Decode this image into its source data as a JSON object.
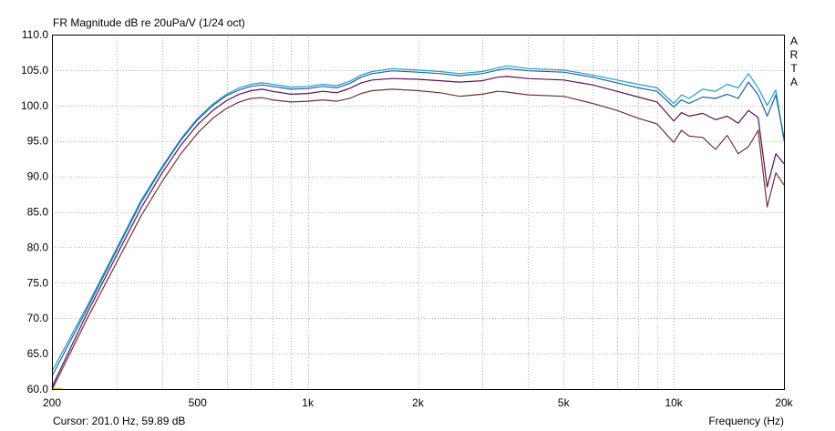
{
  "header": {
    "title": "FR Magnitude dB re 20uPa/V (1/24 oct)",
    "brand_letters": [
      "A",
      "R",
      "T",
      "A"
    ]
  },
  "footer": {
    "cursor": "Cursor: 201.0 Hz, 59.89 dB",
    "xlabel": "Frequency (Hz)"
  },
  "colors": {
    "background": "#ffffff",
    "grid": "#b4b4b4",
    "border": "#000000",
    "series": [
      "#1f9fcf",
      "#245f9f",
      "#5a0f55",
      "#6e3232"
    ],
    "cursor_marker": "#e0c000"
  },
  "chart_data": {
    "type": "line",
    "title": "FR Magnitude dB re 20uPa/V (1/24 oct)",
    "xlabel": "Frequency (Hz)",
    "ylabel": "",
    "xscale": "log",
    "xlim": [
      200,
      20000
    ],
    "ylim": [
      60,
      110
    ],
    "grid": true,
    "x_ticks": [
      200,
      500,
      1000,
      2000,
      5000,
      10000,
      20000
    ],
    "x_tick_labels": [
      "200",
      "500",
      "1k",
      "2k",
      "5k",
      "10k",
      "20k"
    ],
    "y_ticks": [
      60,
      65,
      70,
      75,
      80,
      85,
      90,
      95,
      100,
      105,
      110
    ],
    "y_tick_labels": [
      "60.0",
      "65.0",
      "70.0",
      "75.0",
      "80.0",
      "85.0",
      "90.0",
      "95.0",
      "100.0",
      "105.0",
      "110.0"
    ],
    "series": [
      {
        "color": "#1f9fcf",
        "points": [
          [
            200,
            62.5
          ],
          [
            250,
            71.8
          ],
          [
            300,
            79.8
          ],
          [
            350,
            86.6
          ],
          [
            400,
            91.4
          ],
          [
            450,
            95.3
          ],
          [
            500,
            98.2
          ],
          [
            550,
            100.2
          ],
          [
            600,
            101.6
          ],
          [
            650,
            102.5
          ],
          [
            700,
            103.0
          ],
          [
            750,
            103.2
          ],
          [
            800,
            103.0
          ],
          [
            900,
            102.6
          ],
          [
            1000,
            102.7
          ],
          [
            1100,
            103.0
          ],
          [
            1200,
            102.8
          ],
          [
            1300,
            103.4
          ],
          [
            1400,
            104.3
          ],
          [
            1500,
            104.8
          ],
          [
            1700,
            105.2
          ],
          [
            2000,
            105.0
          ],
          [
            2300,
            104.8
          ],
          [
            2600,
            104.5
          ],
          [
            3000,
            104.8
          ],
          [
            3300,
            105.3
          ],
          [
            3500,
            105.6
          ],
          [
            4000,
            105.2
          ],
          [
            5000,
            105.0
          ],
          [
            6000,
            104.3
          ],
          [
            7000,
            103.6
          ],
          [
            8000,
            103.0
          ],
          [
            9000,
            102.5
          ],
          [
            10000,
            100.3
          ],
          [
            10500,
            101.5
          ],
          [
            11000,
            101.0
          ],
          [
            12000,
            102.3
          ],
          [
            13000,
            102.0
          ],
          [
            14000,
            103.0
          ],
          [
            15000,
            102.5
          ],
          [
            16000,
            104.5
          ],
          [
            17000,
            102.5
          ],
          [
            18000,
            100.0
          ],
          [
            19000,
            102.2
          ],
          [
            20000,
            95.0
          ]
        ]
      },
      {
        "color": "#245f9f",
        "points": [
          [
            200,
            61.8
          ],
          [
            250,
            71.4
          ],
          [
            300,
            79.5
          ],
          [
            350,
            86.3
          ],
          [
            400,
            91.2
          ],
          [
            450,
            95.1
          ],
          [
            500,
            98.0
          ],
          [
            550,
            100.0
          ],
          [
            600,
            101.4
          ],
          [
            650,
            102.2
          ],
          [
            700,
            102.7
          ],
          [
            750,
            102.9
          ],
          [
            800,
            102.7
          ],
          [
            900,
            102.3
          ],
          [
            1000,
            102.4
          ],
          [
            1100,
            102.7
          ],
          [
            1200,
            102.5
          ],
          [
            1300,
            103.1
          ],
          [
            1400,
            104.0
          ],
          [
            1500,
            104.5
          ],
          [
            1700,
            104.9
          ],
          [
            2000,
            104.7
          ],
          [
            2300,
            104.5
          ],
          [
            2600,
            104.2
          ],
          [
            3000,
            104.5
          ],
          [
            3300,
            105.0
          ],
          [
            3500,
            105.2
          ],
          [
            4000,
            104.9
          ],
          [
            5000,
            104.7
          ],
          [
            6000,
            104.0
          ],
          [
            7000,
            103.2
          ],
          [
            8000,
            102.5
          ],
          [
            9000,
            102.0
          ],
          [
            10000,
            99.8
          ],
          [
            10500,
            100.8
          ],
          [
            11000,
            100.3
          ],
          [
            12000,
            101.2
          ],
          [
            13000,
            101.0
          ],
          [
            14000,
            101.6
          ],
          [
            15000,
            101.0
          ],
          [
            16000,
            103.3
          ],
          [
            17000,
            101.5
          ],
          [
            18000,
            98.5
          ],
          [
            19000,
            101.5
          ],
          [
            20000,
            95.5
          ]
        ]
      },
      {
        "color": "#5a0f55",
        "points": [
          [
            200,
            60.3
          ],
          [
            250,
            70.8
          ],
          [
            300,
            78.8
          ],
          [
            350,
            85.5
          ],
          [
            400,
            90.5
          ],
          [
            450,
            94.4
          ],
          [
            500,
            97.3
          ],
          [
            550,
            99.3
          ],
          [
            600,
            100.7
          ],
          [
            650,
            101.6
          ],
          [
            700,
            102.1
          ],
          [
            750,
            102.3
          ],
          [
            800,
            102.0
          ],
          [
            900,
            101.6
          ],
          [
            1000,
            101.7
          ],
          [
            1100,
            102.0
          ],
          [
            1200,
            101.8
          ],
          [
            1300,
            102.4
          ],
          [
            1400,
            103.2
          ],
          [
            1500,
            103.6
          ],
          [
            1700,
            103.8
          ],
          [
            2000,
            103.7
          ],
          [
            2300,
            103.5
          ],
          [
            2600,
            103.3
          ],
          [
            3000,
            103.5
          ],
          [
            3300,
            104.0
          ],
          [
            3500,
            104.1
          ],
          [
            4000,
            103.8
          ],
          [
            5000,
            103.6
          ],
          [
            6000,
            102.9
          ],
          [
            7000,
            102.0
          ],
          [
            8000,
            101.2
          ],
          [
            9000,
            100.5
          ],
          [
            10000,
            97.8
          ],
          [
            10500,
            99.0
          ],
          [
            11000,
            98.5
          ],
          [
            12000,
            98.9
          ],
          [
            13000,
            98.0
          ],
          [
            14000,
            98.5
          ],
          [
            15000,
            97.5
          ],
          [
            16000,
            99.3
          ],
          [
            17000,
            98.3
          ],
          [
            18000,
            88.5
          ],
          [
            19000,
            93.2
          ],
          [
            20000,
            91.8
          ]
        ]
      },
      {
        "color": "#6e3232",
        "points": [
          [
            200,
            59.9
          ],
          [
            250,
            70.0
          ],
          [
            300,
            77.8
          ],
          [
            350,
            84.4
          ],
          [
            400,
            89.3
          ],
          [
            450,
            93.2
          ],
          [
            500,
            96.1
          ],
          [
            550,
            98.2
          ],
          [
            600,
            99.6
          ],
          [
            650,
            100.5
          ],
          [
            700,
            101.0
          ],
          [
            750,
            101.1
          ],
          [
            800,
            100.8
          ],
          [
            900,
            100.5
          ],
          [
            1000,
            100.6
          ],
          [
            1100,
            100.8
          ],
          [
            1200,
            100.6
          ],
          [
            1300,
            101.0
          ],
          [
            1400,
            101.7
          ],
          [
            1500,
            102.1
          ],
          [
            1700,
            102.3
          ],
          [
            2000,
            102.1
          ],
          [
            2300,
            101.8
          ],
          [
            2600,
            101.3
          ],
          [
            3000,
            101.6
          ],
          [
            3300,
            102.0
          ],
          [
            3500,
            101.9
          ],
          [
            4000,
            101.5
          ],
          [
            5000,
            101.3
          ],
          [
            6000,
            100.3
          ],
          [
            7000,
            99.3
          ],
          [
            8000,
            98.2
          ],
          [
            9000,
            97.4
          ],
          [
            10000,
            94.8
          ],
          [
            10500,
            96.5
          ],
          [
            11000,
            95.7
          ],
          [
            12000,
            95.5
          ],
          [
            13000,
            93.8
          ],
          [
            14000,
            95.8
          ],
          [
            15000,
            93.2
          ],
          [
            16000,
            94.2
          ],
          [
            17000,
            96.5
          ],
          [
            18000,
            85.7
          ],
          [
            19000,
            90.5
          ],
          [
            20000,
            88.8
          ]
        ]
      }
    ],
    "cursor": {
      "x": 201.0,
      "y": 59.89
    }
  }
}
